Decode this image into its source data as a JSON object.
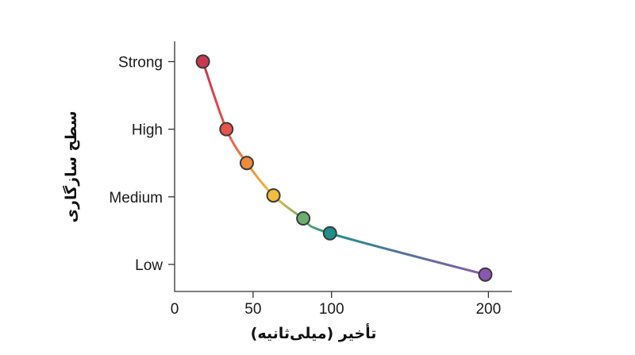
{
  "chart_data": {
    "type": "line",
    "title": "",
    "xlabel": "تأخیر (میلی‌ثانیه)",
    "ylabel": "سطح سازگاری",
    "xlim": [
      0,
      215
    ],
    "ylim": [
      0.6,
      4.3
    ],
    "x_ticks": [
      0,
      50,
      100,
      200
    ],
    "y_ticks": [
      {
        "value": 4,
        "label": "Strong"
      },
      {
        "value": 3,
        "label": "High"
      },
      {
        "value": 2,
        "label": "Medium"
      },
      {
        "value": 1,
        "label": "Low"
      }
    ],
    "grid": false,
    "series": [
      {
        "points": [
          {
            "x": 18,
            "y": 4.0,
            "color": "#c9384f"
          },
          {
            "x": 33,
            "y": 3.0,
            "color": "#e8534b"
          },
          {
            "x": 46,
            "y": 2.5,
            "color": "#f08a3c"
          },
          {
            "x": 63,
            "y": 2.02,
            "color": "#f2bd3c"
          },
          {
            "x": 82,
            "y": 1.68,
            "color": "#6aae6e"
          },
          {
            "x": 99,
            "y": 1.46,
            "color": "#1f8f8a"
          },
          {
            "x": 198,
            "y": 0.85,
            "color": "#8a58b0"
          }
        ]
      }
    ]
  }
}
